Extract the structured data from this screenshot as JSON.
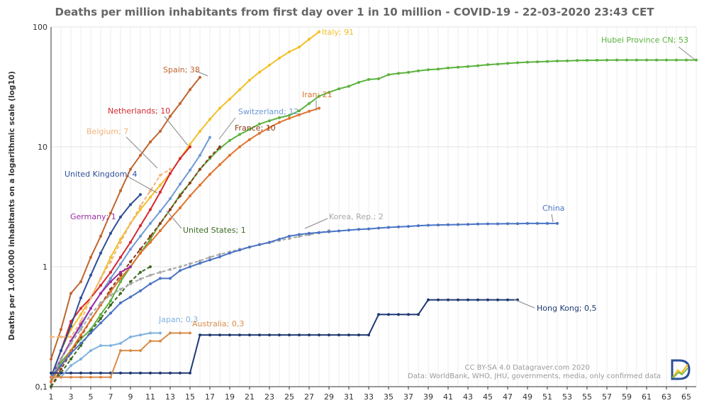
{
  "chart_data": {
    "type": "line",
    "title": "Deaths per million inhabitants from first day over 1 in 10 million  - COVID-19 - 22-03-2020 23:43 CET",
    "ylabel": "Deaths per 1.000.000 inhabitants on a logarithmic scale (log10)",
    "xlabel": "",
    "y_scale": "log10",
    "ylim": [
      0.1,
      100
    ],
    "xlim": [
      1,
      66
    ],
    "grid": true,
    "y_ticks": [
      {
        "value": 100,
        "label": "100"
      },
      {
        "value": 10,
        "label": "10"
      },
      {
        "value": 1,
        "label": "1"
      },
      {
        "value": 0.1,
        "label": "0,1"
      }
    ],
    "x_ticks": [
      1,
      3,
      5,
      7,
      9,
      11,
      13,
      15,
      17,
      19,
      21,
      23,
      25,
      27,
      29,
      31,
      33,
      35,
      37,
      39,
      41,
      43,
      45,
      47,
      49,
      51,
      53,
      55,
      57,
      59,
      61,
      63,
      65
    ],
    "credits": [
      "CC BY-SA 4.0  Datagraver.com 2020",
      "Data: WorldBank, WHO, JHU, governments, media, only confirmed data"
    ],
    "series": [
      {
        "label": "Hubei Province CN; 53",
        "color": "#5cb23f",
        "dashed": false,
        "values": [
          0.11,
          0.16,
          0.2,
          0.25,
          0.3,
          0.4,
          0.52,
          0.75,
          1.0,
          1.3,
          1.7,
          2.3,
          3.0,
          4.0,
          5.0,
          6.5,
          8.0,
          9.7,
          11.3,
          12.7,
          14,
          15.5,
          16.5,
          17.5,
          18.3,
          20,
          23,
          26.5,
          28.5,
          30.5,
          32,
          34.5,
          36.5,
          37,
          40,
          41,
          41.8,
          43,
          44,
          44.5,
          45.5,
          46.2,
          46.8,
          47.5,
          48.5,
          49,
          49.7,
          50.3,
          50.9,
          51.2,
          51.6,
          52,
          52.2,
          52.5,
          52.7,
          52.8,
          52.9,
          53,
          53,
          53,
          53,
          53,
          53,
          53,
          53,
          53
        ]
      },
      {
        "label": "Italy; 91",
        "color": "#f2c029",
        "dashed": false,
        "values": [
          0.12,
          0.2,
          0.3,
          0.4,
          0.55,
          0.8,
          1.2,
          1.7,
          2.3,
          3.0,
          3.8,
          4.8,
          6.0,
          8.0,
          10.5,
          13.5,
          17,
          21,
          25,
          30,
          36,
          42,
          48,
          55,
          62,
          68,
          79,
          91
        ]
      },
      {
        "label": "Spain; 38",
        "color": "#c0642d",
        "dashed": false,
        "values": [
          0.17,
          0.3,
          0.6,
          0.75,
          1.2,
          1.8,
          2.8,
          4.3,
          6.5,
          8.5,
          11,
          13.5,
          18,
          23,
          30,
          38
        ]
      },
      {
        "label": "Netherlands; 10",
        "color": "#d6282f",
        "dashed": false,
        "values": [
          0.12,
          0.2,
          0.35,
          0.45,
          0.55,
          0.7,
          0.9,
          1.2,
          1.6,
          2.2,
          3.0,
          4.2,
          6.0,
          8.0,
          10
        ]
      },
      {
        "label": "Belgium; 7",
        "color": "#f0b47c",
        "dashed": true,
        "values": [
          0.26,
          0.26,
          0.26,
          0.35,
          0.55,
          0.8,
          1.1,
          1.6,
          2.3,
          3.2,
          4.3,
          5.8,
          6.5
        ]
      },
      {
        "label": "Switzerland; 12",
        "color": "#6e9ad6",
        "dashed": false,
        "values": [
          0.12,
          0.17,
          0.24,
          0.32,
          0.45,
          0.6,
          0.8,
          1.05,
          1.4,
          1.8,
          2.3,
          2.9,
          3.7,
          4.9,
          6.4,
          8.5,
          12
        ]
      },
      {
        "label": "France; 10",
        "color": "#8a3c1c",
        "dashed": true,
        "values": [
          0.1,
          0.14,
          0.19,
          0.26,
          0.36,
          0.48,
          0.65,
          0.85,
          1.1,
          1.4,
          1.8,
          2.3,
          3.0,
          3.9,
          5.0,
          6.5,
          8.2,
          10
        ]
      },
      {
        "label": "Iran; 21",
        "color": "#e0732c",
        "dashed": false,
        "values": [
          0.11,
          0.15,
          0.2,
          0.27,
          0.36,
          0.48,
          0.62,
          0.8,
          1.0,
          1.3,
          1.6,
          2.0,
          2.5,
          3.1,
          3.9,
          4.8,
          5.9,
          7.1,
          8.5,
          10,
          11.5,
          13,
          14.5,
          16,
          17.3,
          18.5,
          19.8,
          21
        ]
      },
      {
        "label": "United Kingdom; 4",
        "color": "#2d4e9a",
        "dashed": false,
        "values": [
          0.12,
          0.2,
          0.32,
          0.55,
          0.85,
          1.3,
          1.9,
          2.6,
          3.3,
          4
        ]
      },
      {
        "label": "Germany; 1",
        "color": "#9a2fa3",
        "dashed": false,
        "values": [
          0.12,
          0.17,
          0.24,
          0.33,
          0.45,
          0.6,
          0.75,
          0.9,
          1.0
        ]
      },
      {
        "label": "United States; 1",
        "color": "#3b6a21",
        "dashed": true,
        "values": [
          0.1,
          0.13,
          0.17,
          0.22,
          0.29,
          0.37,
          0.48,
          0.6,
          0.75,
          0.9,
          1.0
        ]
      },
      {
        "label": "Korea, Rep.; 2",
        "color": "#a8a8a8",
        "dashed": true,
        "values": [
          0.12,
          0.17,
          0.23,
          0.3,
          0.4,
          0.5,
          0.58,
          0.65,
          0.72,
          0.79,
          0.85,
          0.9,
          0.95,
          1.0,
          1.06,
          1.12,
          1.2,
          1.27,
          1.33,
          1.4,
          1.46,
          1.53,
          1.59,
          1.66,
          1.72,
          1.79,
          1.85,
          1.92,
          2.0
        ]
      },
      {
        "label": "China",
        "color": "#4a74c4",
        "dashed": false,
        "values": [
          0.12,
          0.15,
          0.19,
          0.23,
          0.28,
          0.34,
          0.41,
          0.5,
          0.56,
          0.63,
          0.72,
          0.8,
          0.8,
          0.93,
          1.0,
          1.07,
          1.14,
          1.21,
          1.3,
          1.38,
          1.46,
          1.53,
          1.6,
          1.7,
          1.8,
          1.86,
          1.9,
          1.93,
          1.96,
          1.99,
          2.02,
          2.05,
          2.07,
          2.1,
          2.13,
          2.15,
          2.17,
          2.2,
          2.22,
          2.23,
          2.24,
          2.25,
          2.26,
          2.27,
          2.28,
          2.28,
          2.29,
          2.29,
          2.3,
          2.3,
          2.3,
          2.3
        ]
      },
      {
        "label": "Hong Kong; 0,5",
        "color": "#1f3a73",
        "dashed": false,
        "values": [
          0.13,
          0.13,
          0.13,
          0.13,
          0.13,
          0.13,
          0.13,
          0.13,
          0.13,
          0.13,
          0.13,
          0.13,
          0.13,
          0.13,
          0.13,
          0.27,
          0.27,
          0.27,
          0.27,
          0.27,
          0.27,
          0.27,
          0.27,
          0.27,
          0.27,
          0.27,
          0.27,
          0.27,
          0.27,
          0.27,
          0.27,
          0.27,
          0.27,
          0.4,
          0.4,
          0.4,
          0.4,
          0.4,
          0.53,
          0.53,
          0.53,
          0.53,
          0.53,
          0.53,
          0.53,
          0.53,
          0.53,
          0.53
        ]
      },
      {
        "label": "Japan; 0,3",
        "color": "#7fb2e0",
        "dashed": false,
        "values": [
          0.12,
          0.12,
          0.15,
          0.17,
          0.2,
          0.22,
          0.22,
          0.23,
          0.26,
          0.27,
          0.28,
          0.28
        ]
      },
      {
        "label": "Australia; 0,3",
        "color": "#d98c4a",
        "dashed": false,
        "values": [
          0.12,
          0.12,
          0.12,
          0.12,
          0.12,
          0.12,
          0.12,
          0.2,
          0.2,
          0.2,
          0.24,
          0.24,
          0.28,
          0.28,
          0.28
        ]
      }
    ]
  }
}
